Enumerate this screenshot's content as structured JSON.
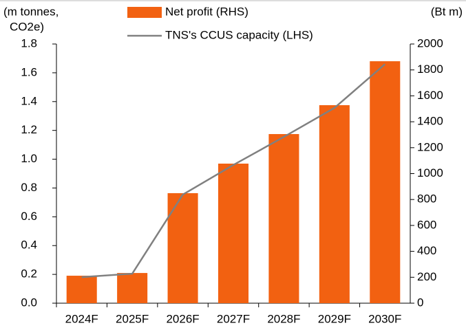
{
  "chart_data": {
    "type": "bar_line",
    "y_label": [
      "(m tonnes,",
      "CO2e)"
    ],
    "y2_label": "(Bt m)",
    "categories": [
      "2024F",
      "2025F",
      "2026F",
      "2027F",
      "2028F",
      "2029F",
      "2030F"
    ],
    "series": [
      {
        "name": "Net profit (RHS)",
        "type": "bar",
        "axis": "y2",
        "color": "#f26111",
        "values": [
          212,
          233,
          849,
          1077,
          1305,
          1528,
          1867
        ]
      },
      {
        "name": "TNS's CCUS capacity (LHS)",
        "type": "line",
        "axis": "y",
        "color": "#808080",
        "values": [
          0.181,
          0.205,
          0.754,
          0.96,
          1.155,
          1.356,
          1.66
        ]
      }
    ],
    "ylim": [
      0,
      1.8
    ],
    "yticks": [
      {
        "value": 0,
        "label": "0.0"
      },
      0.2,
      0.4,
      0.6,
      0.8,
      {
        "value": 1,
        "label": "1.0"
      },
      1.2,
      1.4,
      1.6,
      1.8
    ],
    "y2lim": [
      0,
      2000
    ],
    "y2ticks": [
      0,
      200,
      400,
      600,
      800,
      1000,
      1200,
      1400,
      1600,
      1800,
      2000
    ],
    "grid": false
  }
}
